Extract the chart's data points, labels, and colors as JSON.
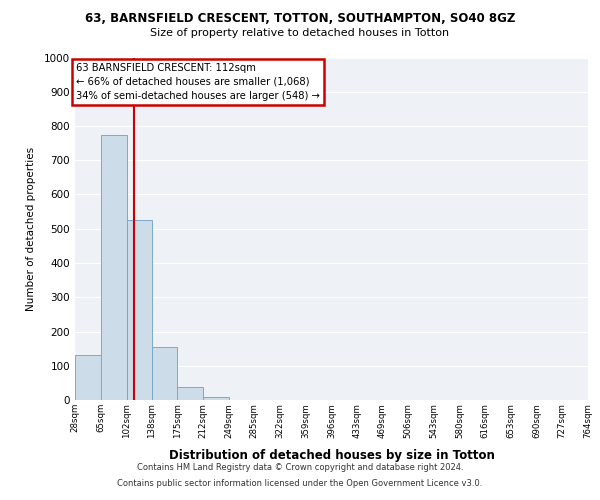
{
  "title_line1": "63, BARNSFIELD CRESCENT, TOTTON, SOUTHAMPTON, SO40 8GZ",
  "title_line2": "Size of property relative to detached houses in Totton",
  "xlabel": "Distribution of detached houses by size in Totton",
  "ylabel": "Number of detached properties",
  "bar_edges": [
    28,
    65,
    102,
    138,
    175,
    212,
    249,
    285,
    322,
    359,
    396,
    433,
    469,
    506,
    543,
    580,
    616,
    653,
    690,
    727,
    764
  ],
  "bar_heights": [
    130,
    775,
    525,
    155,
    38,
    8,
    0,
    0,
    0,
    0,
    0,
    0,
    0,
    0,
    0,
    0,
    0,
    0,
    0,
    0
  ],
  "bar_color": "#ccdce8",
  "bar_edge_color": "#7aaac8",
  "vline_x": 112,
  "vline_color": "#cc0000",
  "ylim": [
    0,
    1000
  ],
  "yticks": [
    0,
    100,
    200,
    300,
    400,
    500,
    600,
    700,
    800,
    900,
    1000
  ],
  "tick_labels": [
    "28sqm",
    "65sqm",
    "102sqm",
    "138sqm",
    "175sqm",
    "212sqm",
    "249sqm",
    "285sqm",
    "322sqm",
    "359sqm",
    "396sqm",
    "433sqm",
    "469sqm",
    "506sqm",
    "543sqm",
    "580sqm",
    "616sqm",
    "653sqm",
    "690sqm",
    "727sqm",
    "764sqm"
  ],
  "annotation_title": "63 BARNSFIELD CRESCENT: 112sqm",
  "annotation_line2": "← 66% of detached houses are smaller (1,068)",
  "annotation_line3": "34% of semi-detached houses are larger (548) →",
  "annotation_box_color": "#ffffff",
  "annotation_box_edge": "#cc0000",
  "footer_line1": "Contains HM Land Registry data © Crown copyright and database right 2024.",
  "footer_line2": "Contains public sector information licensed under the Open Government Licence v3.0.",
  "plot_bg_color": "#eef2f7",
  "grid_color": "#ffffff",
  "fig_bg": "#ffffff"
}
